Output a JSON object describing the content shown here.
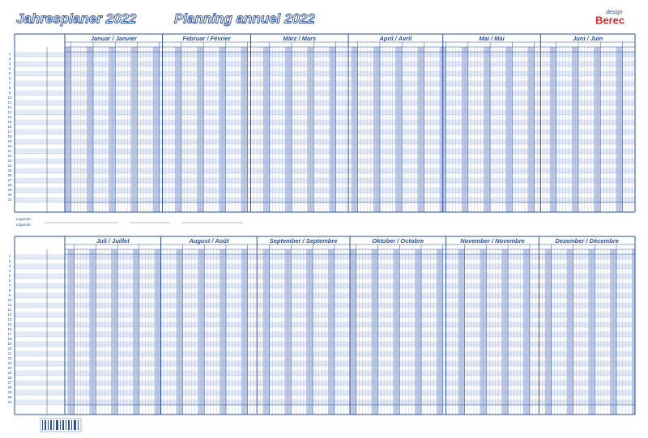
{
  "header": {
    "title_de": "Jahresplaner 2022",
    "title_fr": "Planning annuel 2022",
    "brand_small": "design",
    "brand": "Berec"
  },
  "panels": [
    {
      "months": [
        {
          "label": "Januar / Janvier",
          "days": 31
        },
        {
          "label": "Februar / Février",
          "days": 28
        },
        {
          "label": "März / Mars",
          "days": 31
        },
        {
          "label": "April / Avril",
          "days": 30
        },
        {
          "label": "Mai / Mai",
          "days": 31
        },
        {
          "label": "Juni / Juin",
          "days": 30
        }
      ]
    },
    {
      "months": [
        {
          "label": "Juli / Juillet",
          "days": 31
        },
        {
          "label": "August / Août",
          "days": 31
        },
        {
          "label": "September / Septembre",
          "days": 30
        },
        {
          "label": "Oktober / Octobre",
          "days": 31
        },
        {
          "label": "November / Novembre",
          "days": 30
        },
        {
          "label": "Dezember / Décembre",
          "days": 31
        }
      ]
    }
  ],
  "row_numbers": [
    1,
    2,
    3,
    4,
    5,
    6,
    7,
    8,
    9,
    10,
    11,
    12,
    13,
    14,
    15,
    16,
    17,
    18,
    19,
    20,
    21,
    22,
    23,
    24,
    25,
    26,
    27,
    28,
    29,
    30,
    31
  ],
  "legend": {
    "label_de": "Legende :",
    "label_fr": "Légende :"
  }
}
